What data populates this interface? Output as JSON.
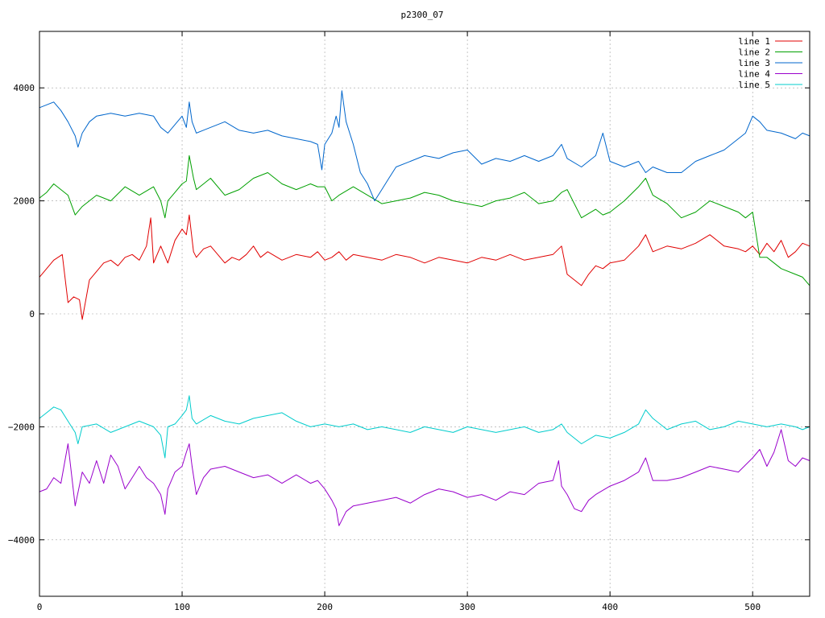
{
  "chart_data": {
    "type": "line",
    "title": "p2300_07",
    "xlabel": "",
    "ylabel": "",
    "xlim": [
      0,
      540
    ],
    "ylim": [
      -5000,
      5000
    ],
    "xticks": [
      0,
      100,
      200,
      300,
      400,
      500
    ],
    "yticks": [
      -4000,
      -2000,
      0,
      2000,
      4000
    ],
    "grid": true,
    "legend_position": "top-right",
    "series": [
      {
        "name": "line 1",
        "color": "#e00000",
        "x": [
          0,
          10,
          16,
          20,
          24,
          28,
          30,
          35,
          40,
          45,
          50,
          55,
          60,
          65,
          70,
          75,
          78,
          80,
          85,
          90,
          95,
          100,
          103,
          105,
          108,
          110,
          115,
          120,
          125,
          130,
          135,
          140,
          145,
          150,
          155,
          160,
          170,
          180,
          190,
          195,
          200,
          205,
          210,
          215,
          220,
          230,
          240,
          250,
          260,
          270,
          280,
          290,
          300,
          310,
          320,
          330,
          340,
          350,
          360,
          366,
          370,
          375,
          380,
          385,
          390,
          395,
          400,
          410,
          420,
          425,
          430,
          440,
          450,
          460,
          470,
          480,
          490,
          495,
          500,
          505,
          510,
          515,
          520,
          525,
          530,
          535,
          540
        ],
        "y": [
          650,
          950,
          1050,
          200,
          300,
          250,
          -100,
          600,
          750,
          900,
          950,
          850,
          1000,
          1050,
          950,
          1200,
          1700,
          900,
          1200,
          900,
          1300,
          1500,
          1400,
          1750,
          1100,
          1000,
          1150,
          1200,
          1050,
          900,
          1000,
          950,
          1050,
          1200,
          1000,
          1100,
          950,
          1050,
          1000,
          1100,
          950,
          1000,
          1100,
          950,
          1050,
          1000,
          950,
          1050,
          1000,
          900,
          1000,
          950,
          900,
          1000,
          950,
          1050,
          950,
          1000,
          1050,
          1200,
          700,
          600,
          500,
          700,
          850,
          800,
          900,
          950,
          1200,
          1400,
          1100,
          1200,
          1150,
          1250,
          1400,
          1200,
          1150,
          1100,
          1200,
          1050,
          1250,
          1100,
          1300,
          1000,
          1100,
          1250,
          1200
        ]
      },
      {
        "name": "line 2",
        "color": "#00a000",
        "x": [
          0,
          5,
          10,
          15,
          20,
          25,
          30,
          40,
          50,
          60,
          70,
          80,
          85,
          88,
          90,
          95,
          100,
          103,
          105,
          108,
          110,
          120,
          130,
          140,
          150,
          160,
          170,
          180,
          190,
          195,
          200,
          205,
          210,
          220,
          230,
          240,
          250,
          260,
          270,
          280,
          290,
          300,
          310,
          320,
          330,
          340,
          350,
          360,
          366,
          370,
          380,
          390,
          395,
          400,
          410,
          420,
          425,
          430,
          440,
          450,
          460,
          470,
          480,
          490,
          495,
          500,
          505,
          510,
          520,
          530,
          535,
          540
        ],
        "y": [
          2050,
          2150,
          2300,
          2200,
          2100,
          1750,
          1900,
          2100,
          2000,
          2250,
          2100,
          2250,
          2000,
          1700,
          2000,
          2150,
          2300,
          2350,
          2800,
          2400,
          2200,
          2400,
          2100,
          2200,
          2400,
          2500,
          2300,
          2200,
          2300,
          2250,
          2250,
          2000,
          2100,
          2250,
          2100,
          1950,
          2000,
          2050,
          2150,
          2100,
          2000,
          1950,
          1900,
          2000,
          2050,
          2150,
          1950,
          2000,
          2150,
          2200,
          1700,
          1850,
          1750,
          1800,
          2000,
          2250,
          2400,
          2100,
          1950,
          1700,
          1800,
          2000,
          1900,
          1800,
          1700,
          1800,
          1000,
          1000,
          800,
          700,
          650,
          500
        ]
      },
      {
        "name": "line 3",
        "color": "#0066cc",
        "x": [
          0,
          5,
          10,
          15,
          20,
          25,
          27,
          30,
          35,
          40,
          50,
          60,
          70,
          80,
          85,
          90,
          95,
          100,
          103,
          105,
          107,
          110,
          120,
          130,
          140,
          150,
          160,
          170,
          180,
          190,
          195,
          198,
          200,
          205,
          208,
          210,
          212,
          215,
          220,
          225,
          230,
          235,
          240,
          245,
          250,
          260,
          270,
          280,
          290,
          300,
          310,
          320,
          330,
          340,
          350,
          360,
          366,
          370,
          380,
          390,
          395,
          400,
          410,
          420,
          425,
          430,
          440,
          450,
          460,
          470,
          480,
          490,
          495,
          500,
          505,
          510,
          520,
          530,
          535,
          540
        ],
        "y": [
          3650,
          3700,
          3750,
          3600,
          3400,
          3150,
          2950,
          3200,
          3400,
          3500,
          3550,
          3500,
          3550,
          3500,
          3300,
          3200,
          3350,
          3500,
          3300,
          3750,
          3400,
          3200,
          3300,
          3400,
          3250,
          3200,
          3250,
          3150,
          3100,
          3050,
          3000,
          2550,
          3000,
          3200,
          3500,
          3300,
          3950,
          3400,
          3000,
          2500,
          2300,
          2000,
          2200,
          2400,
          2600,
          2700,
          2800,
          2750,
          2850,
          2900,
          2650,
          2750,
          2700,
          2800,
          2700,
          2800,
          3000,
          2750,
          2600,
          2800,
          3200,
          2700,
          2600,
          2700,
          2500,
          2600,
          2500,
          2500,
          2700,
          2800,
          2900,
          3100,
          3200,
          3500,
          3400,
          3250,
          3200,
          3100,
          3200,
          3150
        ]
      },
      {
        "name": "line 4",
        "color": "#9900cc",
        "x": [
          0,
          5,
          10,
          15,
          20,
          25,
          30,
          35,
          40,
          45,
          50,
          55,
          60,
          65,
          70,
          75,
          80,
          85,
          88,
          90,
          95,
          100,
          103,
          105,
          107,
          110,
          115,
          120,
          130,
          140,
          150,
          160,
          170,
          180,
          190,
          195,
          200,
          205,
          208,
          210,
          215,
          220,
          230,
          240,
          250,
          260,
          270,
          280,
          290,
          300,
          310,
          320,
          330,
          340,
          350,
          360,
          364,
          366,
          370,
          375,
          380,
          385,
          390,
          400,
          410,
          420,
          425,
          430,
          440,
          450,
          460,
          470,
          480,
          490,
          500,
          505,
          510,
          515,
          520,
          525,
          530,
          535,
          540
        ],
        "y": [
          -3150,
          -3100,
          -2900,
          -3000,
          -2300,
          -3400,
          -2800,
          -3000,
          -2600,
          -3000,
          -2500,
          -2700,
          -3100,
          -2900,
          -2700,
          -2900,
          -3000,
          -3200,
          -3550,
          -3100,
          -2800,
          -2700,
          -2450,
          -2300,
          -2700,
          -3200,
          -2900,
          -2750,
          -2700,
          -2800,
          -2900,
          -2850,
          -3000,
          -2850,
          -3000,
          -2950,
          -3100,
          -3300,
          -3450,
          -3750,
          -3500,
          -3400,
          -3350,
          -3300,
          -3250,
          -3350,
          -3200,
          -3100,
          -3150,
          -3250,
          -3200,
          -3300,
          -3150,
          -3200,
          -3000,
          -2950,
          -2600,
          -3050,
          -3200,
          -3450,
          -3500,
          -3300,
          -3200,
          -3050,
          -2950,
          -2800,
          -2550,
          -2950,
          -2950,
          -2900,
          -2800,
          -2700,
          -2750,
          -2800,
          -2550,
          -2400,
          -2700,
          -2450,
          -2050,
          -2600,
          -2700,
          -2550,
          -2600
        ]
      },
      {
        "name": "line 5",
        "color": "#00cccc",
        "x": [
          0,
          5,
          10,
          15,
          20,
          25,
          27,
          30,
          40,
          50,
          60,
          70,
          80,
          85,
          88,
          90,
          95,
          100,
          103,
          105,
          107,
          110,
          120,
          130,
          140,
          150,
          160,
          170,
          180,
          190,
          200,
          210,
          220,
          230,
          240,
          250,
          260,
          270,
          280,
          290,
          300,
          310,
          320,
          330,
          340,
          350,
          360,
          366,
          370,
          380,
          390,
          400,
          410,
          420,
          425,
          430,
          440,
          450,
          460,
          470,
          480,
          490,
          500,
          510,
          520,
          530,
          535,
          540
        ],
        "y": [
          -1850,
          -1750,
          -1650,
          -1700,
          -1900,
          -2100,
          -2300,
          -2000,
          -1950,
          -2100,
          -2000,
          -1900,
          -2000,
          -2150,
          -2550,
          -2000,
          -1950,
          -1800,
          -1700,
          -1450,
          -1850,
          -1950,
          -1800,
          -1900,
          -1950,
          -1850,
          -1800,
          -1750,
          -1900,
          -2000,
          -1950,
          -2000,
          -1950,
          -2050,
          -2000,
          -2050,
          -2100,
          -2000,
          -2050,
          -2100,
          -2000,
          -2050,
          -2100,
          -2050,
          -2000,
          -2100,
          -2050,
          -1950,
          -2100,
          -2300,
          -2150,
          -2200,
          -2100,
          -1950,
          -1700,
          -1850,
          -2050,
          -1950,
          -1900,
          -2050,
          -2000,
          -1900,
          -1950,
          -2000,
          -1950,
          -2000,
          -2050,
          -2000
        ]
      }
    ]
  }
}
